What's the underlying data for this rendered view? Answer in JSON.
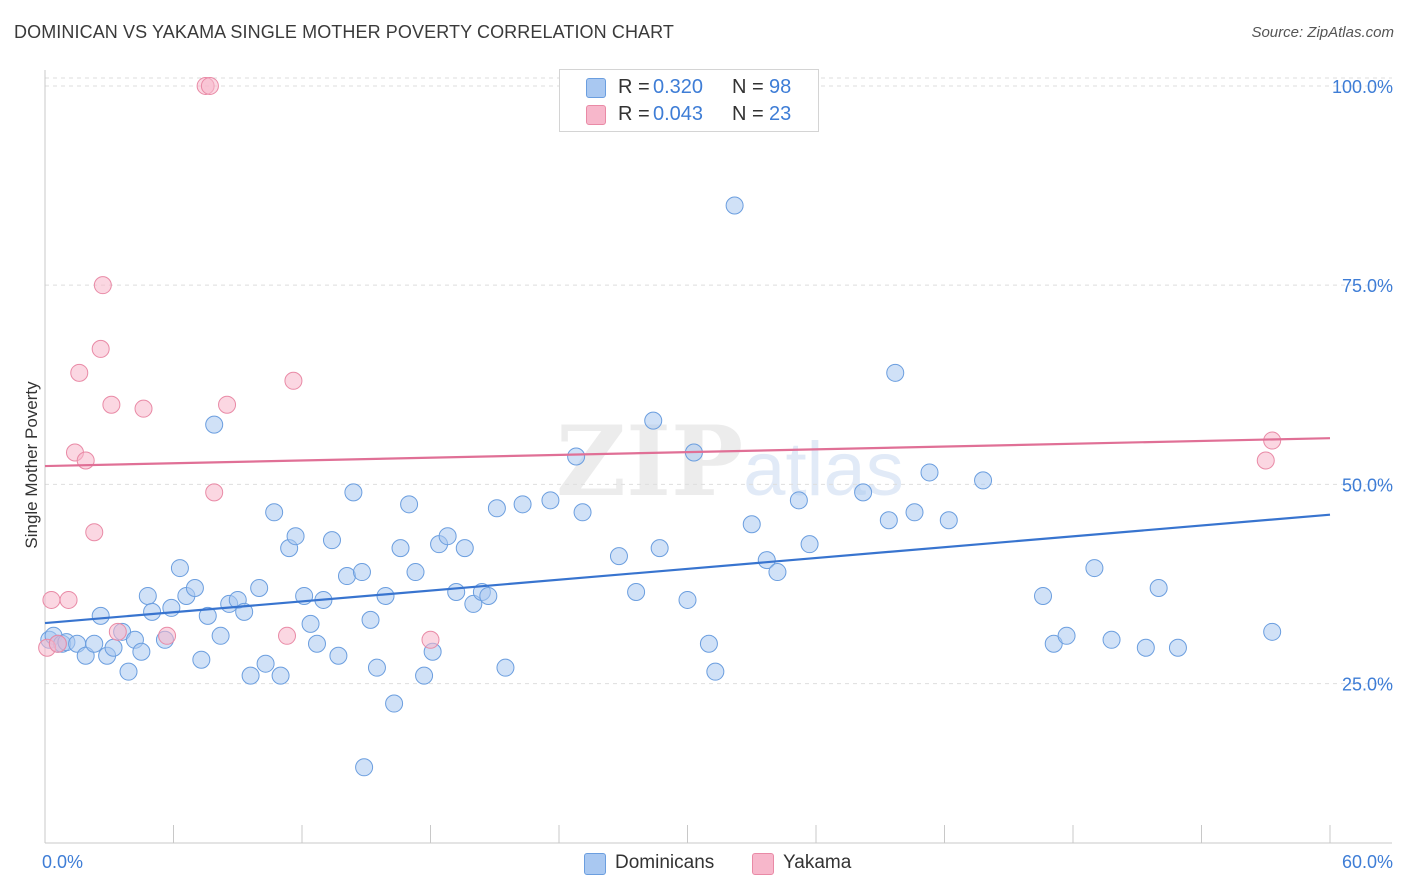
{
  "title": "DOMINICAN VS YAKAMA SINGLE MOTHER POVERTY CORRELATION CHART",
  "source": "Source: ZipAtlas.com",
  "legend": {
    "rows": [
      {
        "r_label": "R =",
        "r_value": "0.320",
        "n_label": "N =",
        "n_value": "98",
        "color": "#a9c8f1"
      },
      {
        "r_label": "R =",
        "r_value": "0.043",
        "n_label": "N =",
        "n_value": "23",
        "color": "#f7b7cb"
      }
    ],
    "series_names": [
      "Dominicans",
      "Yakama"
    ]
  },
  "watermark": {
    "zip": "ZIP",
    "atlas": "atlas"
  },
  "chart_data": {
    "type": "scatter",
    "title": "DOMINICAN VS YAKAMA SINGLE MOTHER POVERTY CORRELATION CHART",
    "xlabel": "",
    "ylabel": "Single Mother Poverty",
    "xlim": [
      0,
      60
    ],
    "ylim": [
      5,
      102
    ],
    "x_tick_labels": [
      "0.0%",
      "60.0%"
    ],
    "y_ticks": [
      25,
      50,
      75,
      100
    ],
    "y_tick_labels": [
      "25.0%",
      "50.0%",
      "75.0%",
      "100.0%"
    ],
    "grid": "horizontal dashed",
    "legend_placement": "top-center and bottom-center",
    "series": [
      {
        "name": "Dominicans",
        "color": "#a9c8f1",
        "stroke": "#6b9edf",
        "line_color": "#3874cf",
        "trend": {
          "x": [
            0,
            60
          ],
          "y": [
            32.6,
            46.2
          ]
        },
        "points": [
          [
            0.2,
            30.5
          ],
          [
            0.4,
            31.0
          ],
          [
            0.6,
            30.0
          ],
          [
            0.8,
            30.0
          ],
          [
            1.0,
            30.2
          ],
          [
            1.5,
            30.0
          ],
          [
            1.9,
            28.5
          ],
          [
            2.3,
            30.0
          ],
          [
            2.6,
            33.5
          ],
          [
            2.9,
            28.5
          ],
          [
            3.2,
            29.5
          ],
          [
            3.6,
            31.5
          ],
          [
            3.9,
            26.5
          ],
          [
            4.2,
            30.5
          ],
          [
            4.5,
            29.0
          ],
          [
            4.8,
            36.0
          ],
          [
            5.0,
            34.0
          ],
          [
            5.6,
            30.5
          ],
          [
            5.9,
            34.5
          ],
          [
            6.3,
            39.5
          ],
          [
            6.6,
            36.0
          ],
          [
            7.0,
            37.0
          ],
          [
            7.3,
            28.0
          ],
          [
            7.6,
            33.5
          ],
          [
            7.9,
            57.5
          ],
          [
            8.2,
            31.0
          ],
          [
            8.6,
            35.0
          ],
          [
            9.0,
            35.5
          ],
          [
            9.3,
            34.0
          ],
          [
            9.6,
            26.0
          ],
          [
            10.0,
            37.0
          ],
          [
            10.3,
            27.5
          ],
          [
            10.7,
            46.5
          ],
          [
            11.0,
            26.0
          ],
          [
            11.4,
            42.0
          ],
          [
            11.7,
            43.5
          ],
          [
            12.1,
            36.0
          ],
          [
            12.4,
            32.5
          ],
          [
            12.7,
            30.0
          ],
          [
            13.0,
            35.5
          ],
          [
            13.4,
            43.0
          ],
          [
            13.7,
            28.5
          ],
          [
            14.1,
            38.5
          ],
          [
            14.4,
            49.0
          ],
          [
            14.8,
            39.0
          ],
          [
            15.2,
            33.0
          ],
          [
            15.5,
            27.0
          ],
          [
            15.9,
            36.0
          ],
          [
            16.3,
            22.5
          ],
          [
            16.6,
            42.0
          ],
          [
            17.0,
            47.5
          ],
          [
            17.3,
            39.0
          ],
          [
            17.7,
            26.0
          ],
          [
            18.1,
            29.0
          ],
          [
            18.4,
            42.5
          ],
          [
            18.8,
            43.5
          ],
          [
            19.2,
            36.5
          ],
          [
            19.6,
            42.0
          ],
          [
            20.0,
            35.0
          ],
          [
            20.4,
            36.5
          ],
          [
            20.7,
            36.0
          ],
          [
            21.1,
            47.0
          ],
          [
            21.5,
            27.0
          ],
          [
            22.3,
            47.5
          ],
          [
            23.6,
            48.0
          ],
          [
            24.8,
            53.5
          ],
          [
            25.1,
            46.5
          ],
          [
            26.8,
            41.0
          ],
          [
            27.6,
            36.5
          ],
          [
            28.4,
            58.0
          ],
          [
            28.7,
            42.0
          ],
          [
            30.0,
            35.5
          ],
          [
            30.3,
            54.0
          ],
          [
            31.0,
            30.0
          ],
          [
            31.3,
            26.5
          ],
          [
            32.2,
            85.0
          ],
          [
            33.0,
            45.0
          ],
          [
            33.7,
            40.5
          ],
          [
            34.2,
            39.0
          ],
          [
            35.2,
            48.0
          ],
          [
            35.7,
            42.5
          ],
          [
            38.2,
            49.0
          ],
          [
            39.4,
            45.5
          ],
          [
            39.7,
            64.0
          ],
          [
            40.6,
            46.5
          ],
          [
            41.3,
            51.5
          ],
          [
            42.2,
            45.5
          ],
          [
            43.8,
            50.5
          ],
          [
            46.6,
            36.0
          ],
          [
            47.1,
            30.0
          ],
          [
            47.7,
            31.0
          ],
          [
            49.0,
            39.5
          ],
          [
            49.8,
            30.5
          ],
          [
            51.4,
            29.5
          ],
          [
            52.0,
            37.0
          ],
          [
            52.9,
            29.5
          ],
          [
            57.3,
            31.5
          ],
          [
            14.9,
            14.5
          ]
        ]
      },
      {
        "name": "Yakama",
        "color": "#f7b7cb",
        "stroke": "#e98aa6",
        "line_color": "#e07096",
        "trend": {
          "x": [
            0,
            60
          ],
          "y": [
            52.3,
            55.8
          ]
        },
        "points": [
          [
            0.1,
            29.5
          ],
          [
            0.3,
            35.5
          ],
          [
            0.6,
            30.0
          ],
          [
            1.1,
            35.5
          ],
          [
            1.4,
            54.0
          ],
          [
            1.6,
            64.0
          ],
          [
            1.9,
            53.0
          ],
          [
            2.3,
            44.0
          ],
          [
            2.6,
            67.0
          ],
          [
            2.7,
            75.0
          ],
          [
            3.1,
            60.0
          ],
          [
            3.4,
            31.5
          ],
          [
            4.6,
            59.5
          ],
          [
            5.7,
            31.0
          ],
          [
            7.5,
            100.0
          ],
          [
            7.7,
            100.0
          ],
          [
            7.9,
            49.0
          ],
          [
            8.5,
            60.0
          ],
          [
            11.3,
            31.0
          ],
          [
            11.6,
            63.0
          ],
          [
            18.0,
            30.5
          ],
          [
            57.0,
            53.0
          ],
          [
            57.3,
            55.5
          ]
        ]
      }
    ]
  }
}
